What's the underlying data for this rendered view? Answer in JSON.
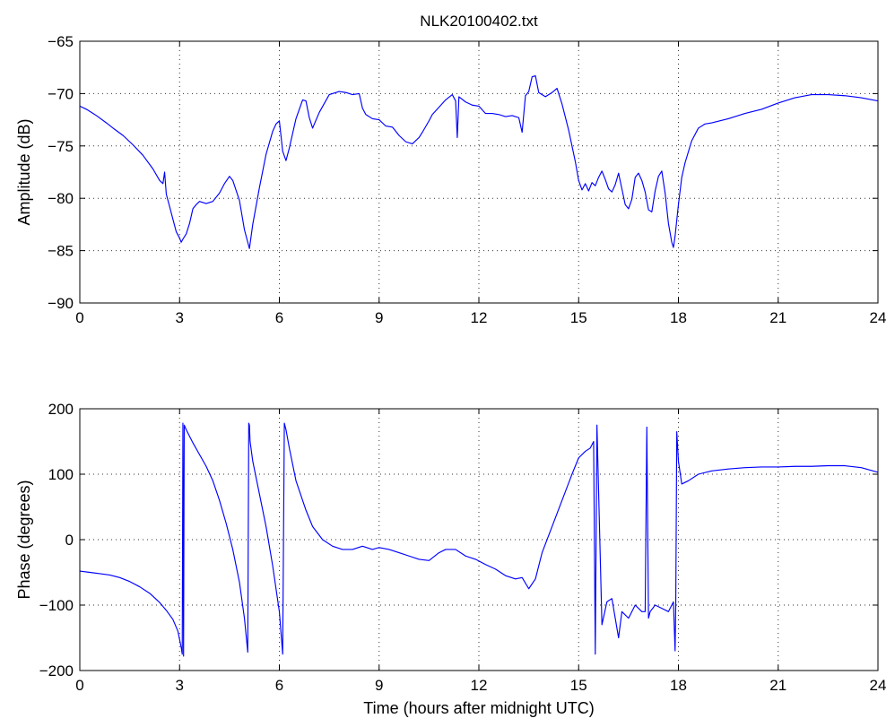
{
  "figure": {
    "title": "NLK20100402.txt",
    "line_color": "#0000ff",
    "background": "#ffffff"
  },
  "chart_data": [
    {
      "type": "line",
      "title": "NLK20100402.txt",
      "xlabel": "",
      "ylabel": "Amplitude (dB)",
      "xlim": [
        0,
        24
      ],
      "ylim": [
        -90,
        -65
      ],
      "x_ticks": [
        0,
        3,
        6,
        9,
        12,
        15,
        18,
        21,
        24
      ],
      "y_ticks": [
        -65,
        -70,
        -75,
        -80,
        -85,
        -90
      ],
      "grid": true,
      "series": [
        {
          "color": "#0000ff",
          "x": [
            0,
            0.2,
            0.5,
            0.8,
            1.0,
            1.3,
            1.6,
            1.9,
            2.2,
            2.4,
            2.5,
            2.55,
            2.6,
            2.7,
            2.8,
            2.9,
            3.0,
            3.05,
            3.1,
            3.2,
            3.3,
            3.4,
            3.5,
            3.6,
            3.8,
            4.0,
            4.2,
            4.35,
            4.5,
            4.6,
            4.8,
            4.95,
            5.05,
            5.1,
            5.2,
            5.4,
            5.6,
            5.8,
            5.9,
            6.0,
            6.1,
            6.2,
            6.3,
            6.5,
            6.7,
            6.8,
            6.9,
            7.0,
            7.2,
            7.5,
            7.8,
            8.0,
            8.2,
            8.4,
            8.5,
            8.6,
            8.8,
            9.0,
            9.2,
            9.4,
            9.6,
            9.8,
            10.0,
            10.2,
            10.3,
            10.5,
            10.6,
            10.8,
            11.0,
            11.2,
            11.3,
            11.35,
            11.4,
            11.6,
            11.8,
            12.0,
            12.2,
            12.4,
            12.6,
            12.8,
            13.0,
            13.2,
            13.3,
            13.4,
            13.5,
            13.6,
            13.7,
            13.8,
            14.0,
            14.2,
            14.35,
            14.5,
            14.7,
            14.9,
            15.0,
            15.1,
            15.2,
            15.3,
            15.4,
            15.5,
            15.6,
            15.7,
            15.8,
            15.9,
            16.0,
            16.1,
            16.2,
            16.3,
            16.4,
            16.5,
            16.6,
            16.7,
            16.8,
            16.9,
            17.0,
            17.1,
            17.2,
            17.3,
            17.4,
            17.5,
            17.6,
            17.7,
            17.8,
            17.85,
            17.9,
            18.0,
            18.1,
            18.2,
            18.4,
            18.6,
            18.8,
            19.0,
            19.5,
            20.0,
            20.5,
            21.0,
            21.5,
            22.0,
            22.5,
            23.0,
            23.5,
            24.0
          ],
          "y": [
            -71.2,
            -71.5,
            -72.1,
            -72.8,
            -73.3,
            -74.0,
            -74.9,
            -75.9,
            -77.2,
            -78.3,
            -78.6,
            -77.5,
            -79.6,
            -80.8,
            -82.0,
            -83.2,
            -83.8,
            -84.2,
            -83.9,
            -83.4,
            -82.4,
            -81.0,
            -80.6,
            -80.3,
            -80.5,
            -80.3,
            -79.5,
            -78.6,
            -77.9,
            -78.3,
            -80.2,
            -83.0,
            -84.2,
            -84.8,
            -82.5,
            -79.0,
            -75.8,
            -73.6,
            -72.9,
            -72.6,
            -75.5,
            -76.4,
            -75.2,
            -72.4,
            -70.6,
            -70.7,
            -72.3,
            -73.3,
            -71.8,
            -70.1,
            -69.8,
            -69.9,
            -70.1,
            -70.0,
            -71.4,
            -72.0,
            -72.4,
            -72.5,
            -73.1,
            -73.2,
            -74.0,
            -74.6,
            -74.8,
            -74.2,
            -73.7,
            -72.6,
            -72.0,
            -71.3,
            -70.6,
            -70.1,
            -70.7,
            -74.2,
            -70.3,
            -70.8,
            -71.1,
            -71.2,
            -71.9,
            -71.9,
            -72.0,
            -72.2,
            -72.1,
            -72.3,
            -73.7,
            -70.2,
            -69.8,
            -68.4,
            -68.3,
            -69.9,
            -70.3,
            -69.9,
            -69.5,
            -71.0,
            -73.5,
            -76.5,
            -78.3,
            -79.2,
            -78.6,
            -79.3,
            -78.5,
            -78.8,
            -78.0,
            -77.4,
            -78.2,
            -79.1,
            -79.4,
            -78.7,
            -77.6,
            -79.1,
            -80.6,
            -81.0,
            -80.1,
            -78.0,
            -77.6,
            -78.3,
            -79.4,
            -81.1,
            -81.3,
            -79.3,
            -77.9,
            -77.4,
            -79.5,
            -82.4,
            -84.2,
            -84.7,
            -83.6,
            -80.6,
            -78.0,
            -76.6,
            -74.5,
            -73.3,
            -72.9,
            -72.8,
            -72.4,
            -71.9,
            -71.5,
            -70.9,
            -70.4,
            -70.1,
            -70.1,
            -70.2,
            -70.4,
            -70.7
          ]
        }
      ]
    },
    {
      "type": "line",
      "title": "",
      "xlabel": "Time (hours after midnight UTC)",
      "ylabel": "Phase (degrees)",
      "xlim": [
        0,
        24
      ],
      "ylim": [
        -200,
        200
      ],
      "x_ticks": [
        0,
        3,
        6,
        9,
        12,
        15,
        18,
        21,
        24
      ],
      "y_ticks": [
        200,
        100,
        0,
        -100,
        -200
      ],
      "grid": true,
      "series": [
        {
          "color": "#0000ff",
          "x": [
            0,
            0.3,
            0.6,
            0.9,
            1.2,
            1.5,
            1.8,
            2.1,
            2.4,
            2.6,
            2.8,
            2.95,
            3.05,
            3.08,
            3.1,
            3.12,
            3.14,
            3.2,
            3.4,
            3.6,
            3.8,
            4.0,
            4.2,
            4.4,
            4.6,
            4.8,
            4.95,
            5.05,
            5.08,
            5.1,
            5.12,
            5.2,
            5.4,
            5.6,
            5.8,
            6.0,
            6.1,
            6.15,
            6.2,
            6.3,
            6.5,
            6.8,
            7.0,
            7.3,
            7.6,
            7.9,
            8.2,
            8.5,
            8.8,
            9.0,
            9.3,
            9.6,
            9.9,
            10.2,
            10.5,
            10.8,
            11.0,
            11.3,
            11.6,
            11.9,
            12.2,
            12.5,
            12.8,
            13.1,
            13.3,
            13.5,
            13.7,
            13.9,
            14.2,
            14.5,
            14.8,
            15.0,
            15.2,
            15.35,
            15.45,
            15.5,
            15.55,
            15.7,
            15.85,
            16.0,
            16.1,
            16.2,
            16.3,
            16.5,
            16.7,
            16.9,
            17.0,
            17.05,
            17.1,
            17.15,
            17.3,
            17.5,
            17.7,
            17.85,
            17.9,
            17.92,
            17.95,
            18.0,
            18.1,
            18.3,
            18.6,
            19.0,
            19.5,
            20.0,
            20.5,
            21.0,
            21.5,
            22.0,
            22.5,
            23.0,
            23.5,
            24.0
          ],
          "y": [
            -48,
            -50,
            -52,
            -54,
            -58,
            -64,
            -72,
            -82,
            -96,
            -108,
            -122,
            -140,
            -165,
            -175,
            178,
            -178,
            175,
            168,
            148,
            130,
            112,
            90,
            60,
            25,
            -15,
            -65,
            -120,
            -172,
            178,
            175,
            150,
            120,
            70,
            20,
            -40,
            -110,
            -175,
            178,
            168,
            140,
            90,
            45,
            20,
            0,
            -10,
            -15,
            -15,
            -10,
            -15,
            -12,
            -15,
            -20,
            -25,
            -30,
            -32,
            -20,
            -15,
            -15,
            -25,
            -30,
            -38,
            -45,
            -55,
            -60,
            -58,
            -75,
            -60,
            -20,
            20,
            60,
            100,
            125,
            135,
            140,
            150,
            -175,
            175,
            -130,
            -95,
            -90,
            -120,
            -150,
            -110,
            -120,
            -100,
            -110,
            -110,
            172,
            -120,
            -110,
            -100,
            -105,
            -110,
            -95,
            -170,
            -100,
            165,
            120,
            85,
            90,
            100,
            105,
            108,
            110,
            111,
            111,
            112,
            112,
            113,
            113,
            110,
            103
          ]
        }
      ]
    }
  ]
}
